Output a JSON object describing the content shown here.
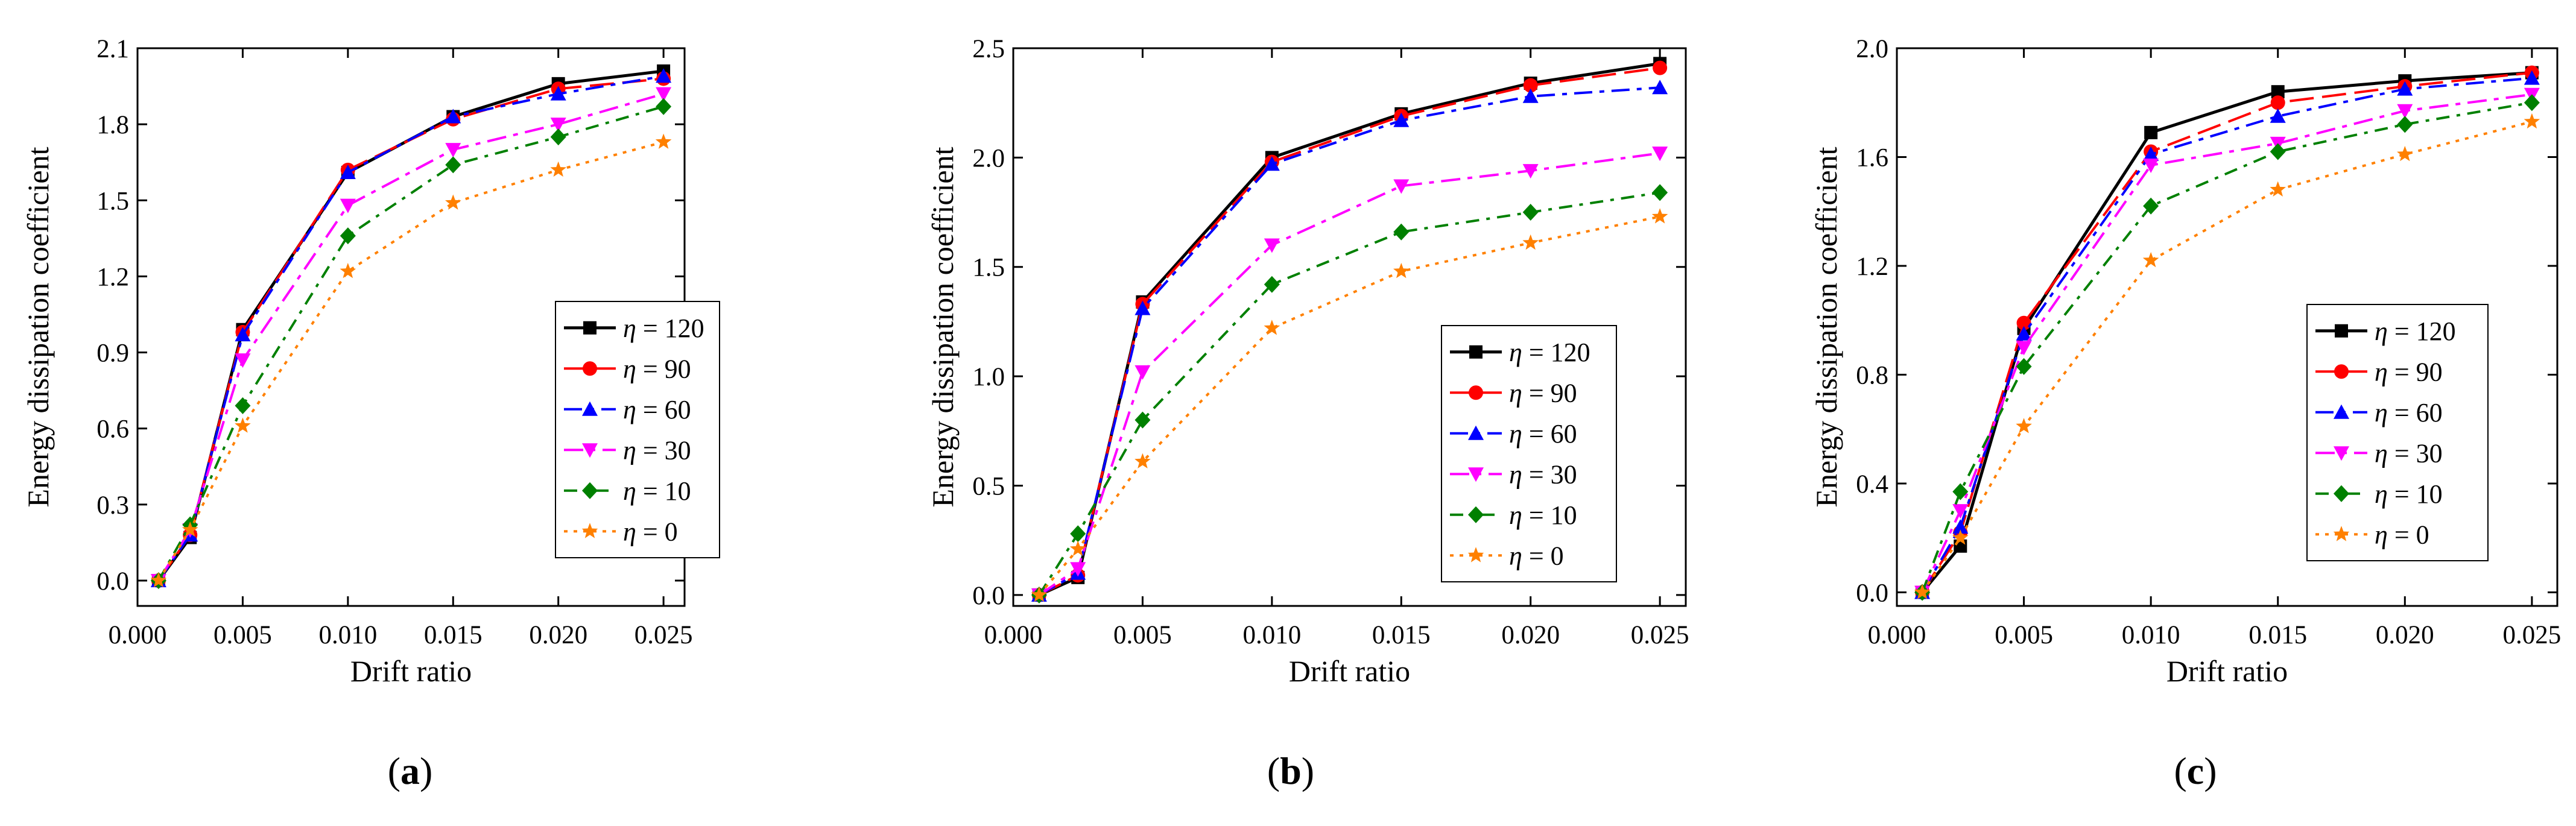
{
  "chart_data": [
    {
      "type": "line",
      "caption_letter": "a",
      "xlabel": "Drift ratio",
      "ylabel": "Energy dissipation coefficient",
      "xlim": [
        0.0,
        0.026
      ],
      "ylim": [
        -0.1,
        2.1
      ],
      "xticks": [
        0.0,
        0.005,
        0.01,
        0.015,
        0.02,
        0.025
      ],
      "xtick_labels": [
        "0.000",
        "0.005",
        "0.010",
        "0.015",
        "0.020",
        "0.025"
      ],
      "yticks": [
        0.0,
        0.3,
        0.6,
        0.9,
        1.2,
        1.5,
        1.8,
        2.1
      ],
      "ytick_labels": [
        "0.0",
        "0.3",
        "0.6",
        "0.9",
        "1.2",
        "1.5",
        "1.8",
        "2.1"
      ],
      "legend_position": "center-right",
      "x": [
        0.001,
        0.0025,
        0.005,
        0.01,
        0.015,
        0.02,
        0.025
      ],
      "series": [
        {
          "name": "η = 120",
          "sym": "η",
          "label": " = 120",
          "values": [
            0.0,
            0.17,
            0.99,
            1.61,
            1.83,
            1.96,
            2.01
          ]
        },
        {
          "name": "η = 90",
          "sym": "η",
          "label": " = 90",
          "values": [
            0.0,
            0.18,
            0.98,
            1.62,
            1.82,
            1.94,
            1.98
          ]
        },
        {
          "name": "η = 60",
          "sym": "η",
          "label": " = 60",
          "values": [
            0.0,
            0.18,
            0.97,
            1.61,
            1.83,
            1.92,
            1.99
          ]
        },
        {
          "name": "η = 30",
          "sym": "η",
          "label": " = 30",
          "values": [
            0.0,
            0.2,
            0.87,
            1.48,
            1.7,
            1.8,
            1.92
          ]
        },
        {
          "name": "η = 10",
          "sym": "η",
          "label": " = 10",
          "values": [
            0.0,
            0.22,
            0.69,
            1.36,
            1.64,
            1.75,
            1.87
          ]
        },
        {
          "name": "η = 0",
          "sym": "η",
          "label": " = 0",
          "values": [
            0.0,
            0.2,
            0.61,
            1.22,
            1.49,
            1.62,
            1.73
          ]
        }
      ]
    },
    {
      "type": "line",
      "caption_letter": "b",
      "xlabel": "Drift ratio",
      "ylabel": "Energy dissipation coefficient",
      "xlim": [
        0.0,
        0.026
      ],
      "ylim": [
        -0.05,
        2.5
      ],
      "xticks": [
        0.0,
        0.005,
        0.01,
        0.015,
        0.02,
        0.025
      ],
      "xtick_labels": [
        "0.000",
        "0.005",
        "0.010",
        "0.015",
        "0.020",
        "0.025"
      ],
      "yticks": [
        0.0,
        0.5,
        1.0,
        1.5,
        2.0,
        2.5
      ],
      "ytick_labels": [
        "0.0",
        "0.5",
        "1.0",
        "1.5",
        "2.0",
        "2.5"
      ],
      "legend_position": "bottom-right",
      "x": [
        0.001,
        0.0025,
        0.005,
        0.01,
        0.015,
        0.02,
        0.025
      ],
      "series": [
        {
          "name": "η = 120",
          "sym": "η",
          "label": " = 120",
          "values": [
            0.0,
            0.08,
            1.34,
            2.0,
            2.2,
            2.34,
            2.43
          ]
        },
        {
          "name": "η = 90",
          "sym": "η",
          "label": " = 90",
          "values": [
            0.0,
            0.09,
            1.33,
            1.98,
            2.19,
            2.33,
            2.41
          ]
        },
        {
          "name": "η = 60",
          "sym": "η",
          "label": " = 60",
          "values": [
            0.0,
            0.1,
            1.31,
            1.97,
            2.17,
            2.28,
            2.32
          ]
        },
        {
          "name": "η = 30",
          "sym": "η",
          "label": " = 30",
          "values": [
            0.0,
            0.12,
            1.02,
            1.6,
            1.87,
            1.94,
            2.02
          ]
        },
        {
          "name": "η = 10",
          "sym": "η",
          "label": " = 10",
          "values": [
            0.0,
            0.28,
            0.8,
            1.42,
            1.66,
            1.75,
            1.84
          ]
        },
        {
          "name": "η = 0",
          "sym": "η",
          "label": " = 0",
          "values": [
            0.0,
            0.21,
            0.61,
            1.22,
            1.48,
            1.61,
            1.73
          ]
        }
      ]
    },
    {
      "type": "line",
      "caption_letter": "c",
      "xlabel": "Drift ratio",
      "ylabel": "Energy dissipation coefficient",
      "xlim": [
        0.0,
        0.026
      ],
      "ylim": [
        -0.05,
        2.0
      ],
      "xticks": [
        0.0,
        0.005,
        0.01,
        0.015,
        0.02,
        0.025
      ],
      "xtick_labels": [
        "0.000",
        "0.005",
        "0.010",
        "0.015",
        "0.020",
        "0.025"
      ],
      "yticks": [
        0.0,
        0.4,
        0.8,
        1.2,
        1.6,
        2.0
      ],
      "ytick_labels": [
        "0.0",
        "0.4",
        "0.8",
        "1.2",
        "1.6",
        "2.0"
      ],
      "legend_position": "bottom-right",
      "x": [
        0.001,
        0.0025,
        0.005,
        0.01,
        0.015,
        0.02,
        0.025
      ],
      "series": [
        {
          "name": "η = 120",
          "sym": "η",
          "label": " = 120",
          "values": [
            0.0,
            0.17,
            0.97,
            1.69,
            1.84,
            1.88,
            1.91
          ]
        },
        {
          "name": "η = 90",
          "sym": "η",
          "label": " = 90",
          "values": [
            0.0,
            0.22,
            0.99,
            1.62,
            1.8,
            1.86,
            1.91
          ]
        },
        {
          "name": "η = 60",
          "sym": "η",
          "label": " = 60",
          "values": [
            0.0,
            0.24,
            0.95,
            1.61,
            1.75,
            1.85,
            1.89
          ]
        },
        {
          "name": "η = 30",
          "sym": "η",
          "label": " = 30",
          "values": [
            0.0,
            0.3,
            0.9,
            1.57,
            1.65,
            1.77,
            1.83
          ]
        },
        {
          "name": "η = 10",
          "sym": "η",
          "label": " = 10",
          "values": [
            0.0,
            0.37,
            0.83,
            1.42,
            1.62,
            1.72,
            1.8
          ]
        },
        {
          "name": "η = 0",
          "sym": "η",
          "label": " = 0",
          "values": [
            0.0,
            0.2,
            0.61,
            1.22,
            1.48,
            1.61,
            1.73
          ]
        }
      ]
    }
  ],
  "styles": {
    "colors": [
      "#000000",
      "#ff0000",
      "#0000ff",
      "#ff00ff",
      "#008000",
      "#ff8000"
    ],
    "markers": [
      "square",
      "circle",
      "triangle-up",
      "triangle-down",
      "diamond",
      "star"
    ],
    "dashes": [
      "",
      "40,14",
      "30,12,8,12",
      "32,12,8,12",
      "22,12,6,12",
      "6,10"
    ]
  }
}
